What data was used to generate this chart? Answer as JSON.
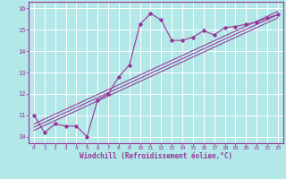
{
  "xlabel": "Windchill (Refroidissement éolien,°C)",
  "bg_color": "#b2e8e8",
  "line_color": "#993399",
  "grid_color": "#ffffff",
  "xlim": [
    -0.5,
    23.5
  ],
  "ylim": [
    9.7,
    16.3
  ],
  "xticks": [
    0,
    1,
    2,
    3,
    4,
    5,
    6,
    7,
    8,
    9,
    10,
    11,
    12,
    13,
    14,
    15,
    16,
    17,
    18,
    19,
    20,
    21,
    22,
    23
  ],
  "yticks": [
    10,
    11,
    12,
    13,
    14,
    15,
    16
  ],
  "series": [
    [
      0,
      11.0
    ],
    [
      1,
      10.2
    ],
    [
      2,
      10.6
    ],
    [
      3,
      10.5
    ],
    [
      4,
      10.5
    ],
    [
      5,
      10.0
    ],
    [
      6,
      11.7
    ],
    [
      7,
      12.0
    ],
    [
      8,
      12.8
    ],
    [
      9,
      13.35
    ],
    [
      10,
      15.25
    ],
    [
      11,
      15.75
    ],
    [
      12,
      15.45
    ],
    [
      13,
      14.5
    ],
    [
      14,
      14.5
    ],
    [
      15,
      14.65
    ],
    [
      16,
      14.95
    ],
    [
      17,
      14.75
    ],
    [
      18,
      15.1
    ],
    [
      19,
      15.15
    ],
    [
      20,
      15.25
    ],
    [
      21,
      15.35
    ],
    [
      22,
      15.55
    ],
    [
      23,
      15.7
    ]
  ],
  "straight_lines": [
    [
      [
        0,
        10.3
      ],
      [
        23,
        15.55
      ]
    ],
    [
      [
        0,
        10.45
      ],
      [
        23,
        15.7
      ]
    ],
    [
      [
        0,
        10.6
      ],
      [
        23,
        15.85
      ]
    ]
  ]
}
